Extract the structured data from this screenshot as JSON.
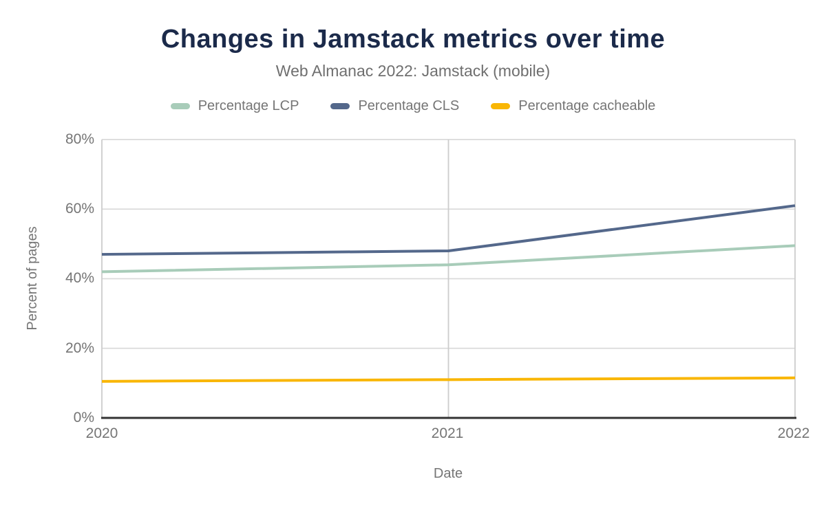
{
  "chart_data": {
    "type": "line",
    "title": "Changes in Jamstack metrics over time",
    "subtitle": "Web Almanac 2022: Jamstack (mobile)",
    "xlabel": "Date",
    "ylabel": "Percent of pages",
    "categories": [
      "2020",
      "2021",
      "2022"
    ],
    "series": [
      {
        "name": "Percentage LCP",
        "color": "#a8ccb9",
        "values": [
          42,
          44,
          49.5
        ]
      },
      {
        "name": "Percentage CLS",
        "color": "#54688b",
        "values": [
          47,
          48,
          61
        ]
      },
      {
        "name": "Percentage cacheable",
        "color": "#f9b604",
        "values": [
          10.5,
          11,
          11.5
        ]
      }
    ],
    "ylim": [
      0,
      80
    ],
    "yticks": [
      {
        "value": 0,
        "label": "0%"
      },
      {
        "value": 20,
        "label": "20%"
      },
      {
        "value": 40,
        "label": "40%"
      },
      {
        "value": 60,
        "label": "60%"
      },
      {
        "value": 80,
        "label": "80%"
      }
    ],
    "grid": true,
    "legend_position": "top"
  },
  "styles": {
    "title_color": "#1b2a4a",
    "text_color": "#757575",
    "grid_color": "#dadada",
    "vgrid_color": "#cccccc",
    "axis_color": "#333333",
    "background": "#ffffff"
  }
}
